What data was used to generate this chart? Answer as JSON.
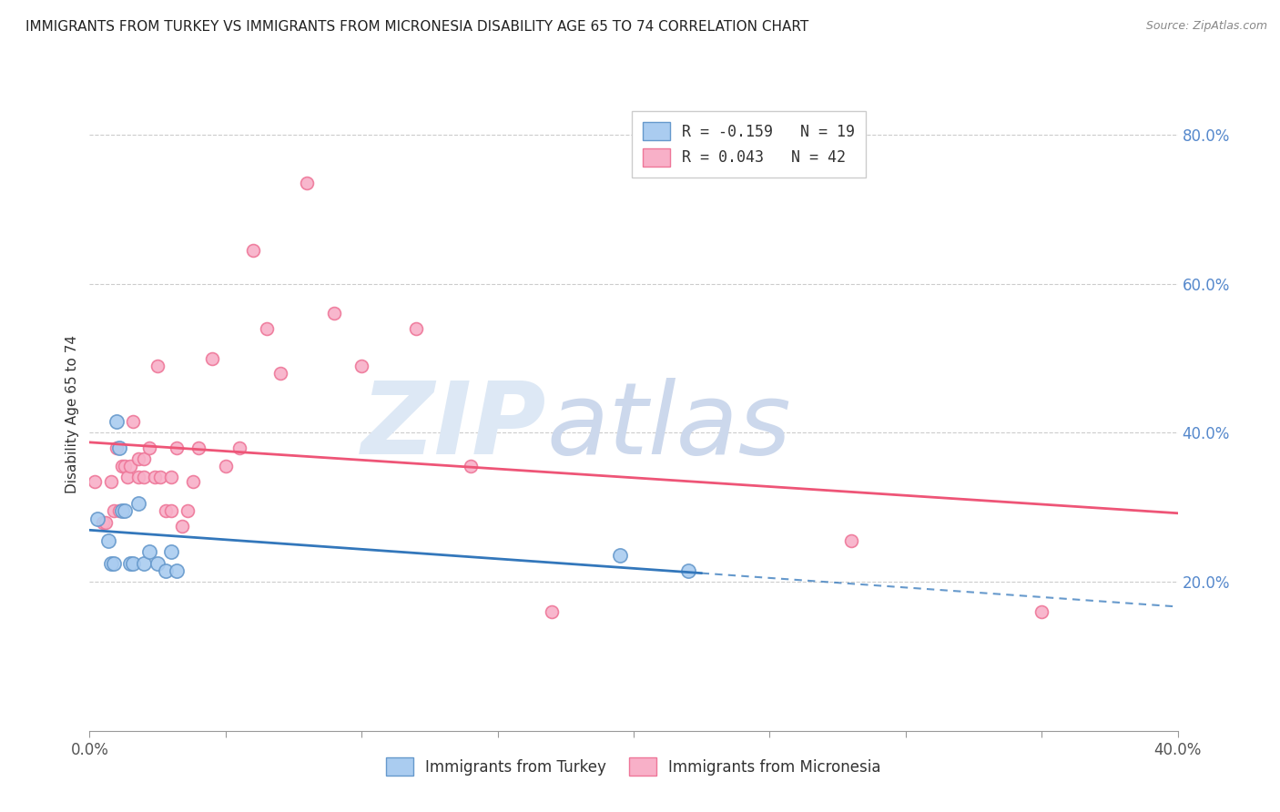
{
  "title": "IMMIGRANTS FROM TURKEY VS IMMIGRANTS FROM MICRONESIA DISABILITY AGE 65 TO 74 CORRELATION CHART",
  "source": "Source: ZipAtlas.com",
  "ylabel": "Disability Age 65 to 74",
  "xlim": [
    0.0,
    0.4
  ],
  "ylim": [
    0.0,
    0.85
  ],
  "yticks": [
    0.2,
    0.4,
    0.6,
    0.8
  ],
  "ytick_labels": [
    "20.0%",
    "40.0%",
    "60.0%",
    "80.0%"
  ],
  "xticks": [
    0.0,
    0.05,
    0.1,
    0.15,
    0.2,
    0.25,
    0.3,
    0.35,
    0.4
  ],
  "legend_turkey": "R = -0.159   N = 19",
  "legend_micronesia": "R = 0.043   N = 42",
  "turkey_color": "#aaccf0",
  "turkey_edge": "#6699cc",
  "micronesia_color": "#f8b0c8",
  "micronesia_edge": "#ee7799",
  "turkey_line_color": "#3377bb",
  "micronesia_line_color": "#ee5577",
  "turkey_x": [
    0.003,
    0.007,
    0.008,
    0.009,
    0.01,
    0.011,
    0.012,
    0.013,
    0.015,
    0.016,
    0.018,
    0.02,
    0.022,
    0.025,
    0.028,
    0.03,
    0.032,
    0.195,
    0.22
  ],
  "turkey_y": [
    0.285,
    0.255,
    0.225,
    0.225,
    0.415,
    0.38,
    0.295,
    0.295,
    0.225,
    0.225,
    0.305,
    0.225,
    0.24,
    0.225,
    0.215,
    0.24,
    0.215,
    0.235,
    0.215
  ],
  "micronesia_x": [
    0.002,
    0.005,
    0.006,
    0.008,
    0.009,
    0.01,
    0.011,
    0.012,
    0.013,
    0.014,
    0.015,
    0.016,
    0.018,
    0.018,
    0.02,
    0.02,
    0.022,
    0.024,
    0.025,
    0.026,
    0.028,
    0.03,
    0.03,
    0.032,
    0.034,
    0.036,
    0.038,
    0.04,
    0.045,
    0.05,
    0.055,
    0.06,
    0.065,
    0.07,
    0.08,
    0.09,
    0.1,
    0.12,
    0.14,
    0.17,
    0.28,
    0.35
  ],
  "micronesia_y": [
    0.335,
    0.28,
    0.28,
    0.335,
    0.295,
    0.38,
    0.295,
    0.355,
    0.355,
    0.34,
    0.355,
    0.415,
    0.365,
    0.34,
    0.34,
    0.365,
    0.38,
    0.34,
    0.49,
    0.34,
    0.295,
    0.295,
    0.34,
    0.38,
    0.275,
    0.295,
    0.335,
    0.38,
    0.5,
    0.355,
    0.38,
    0.645,
    0.54,
    0.48,
    0.735,
    0.56,
    0.49,
    0.54,
    0.355,
    0.16,
    0.255,
    0.16
  ],
  "turkey_marker_size": 120,
  "micronesia_marker_size": 100
}
